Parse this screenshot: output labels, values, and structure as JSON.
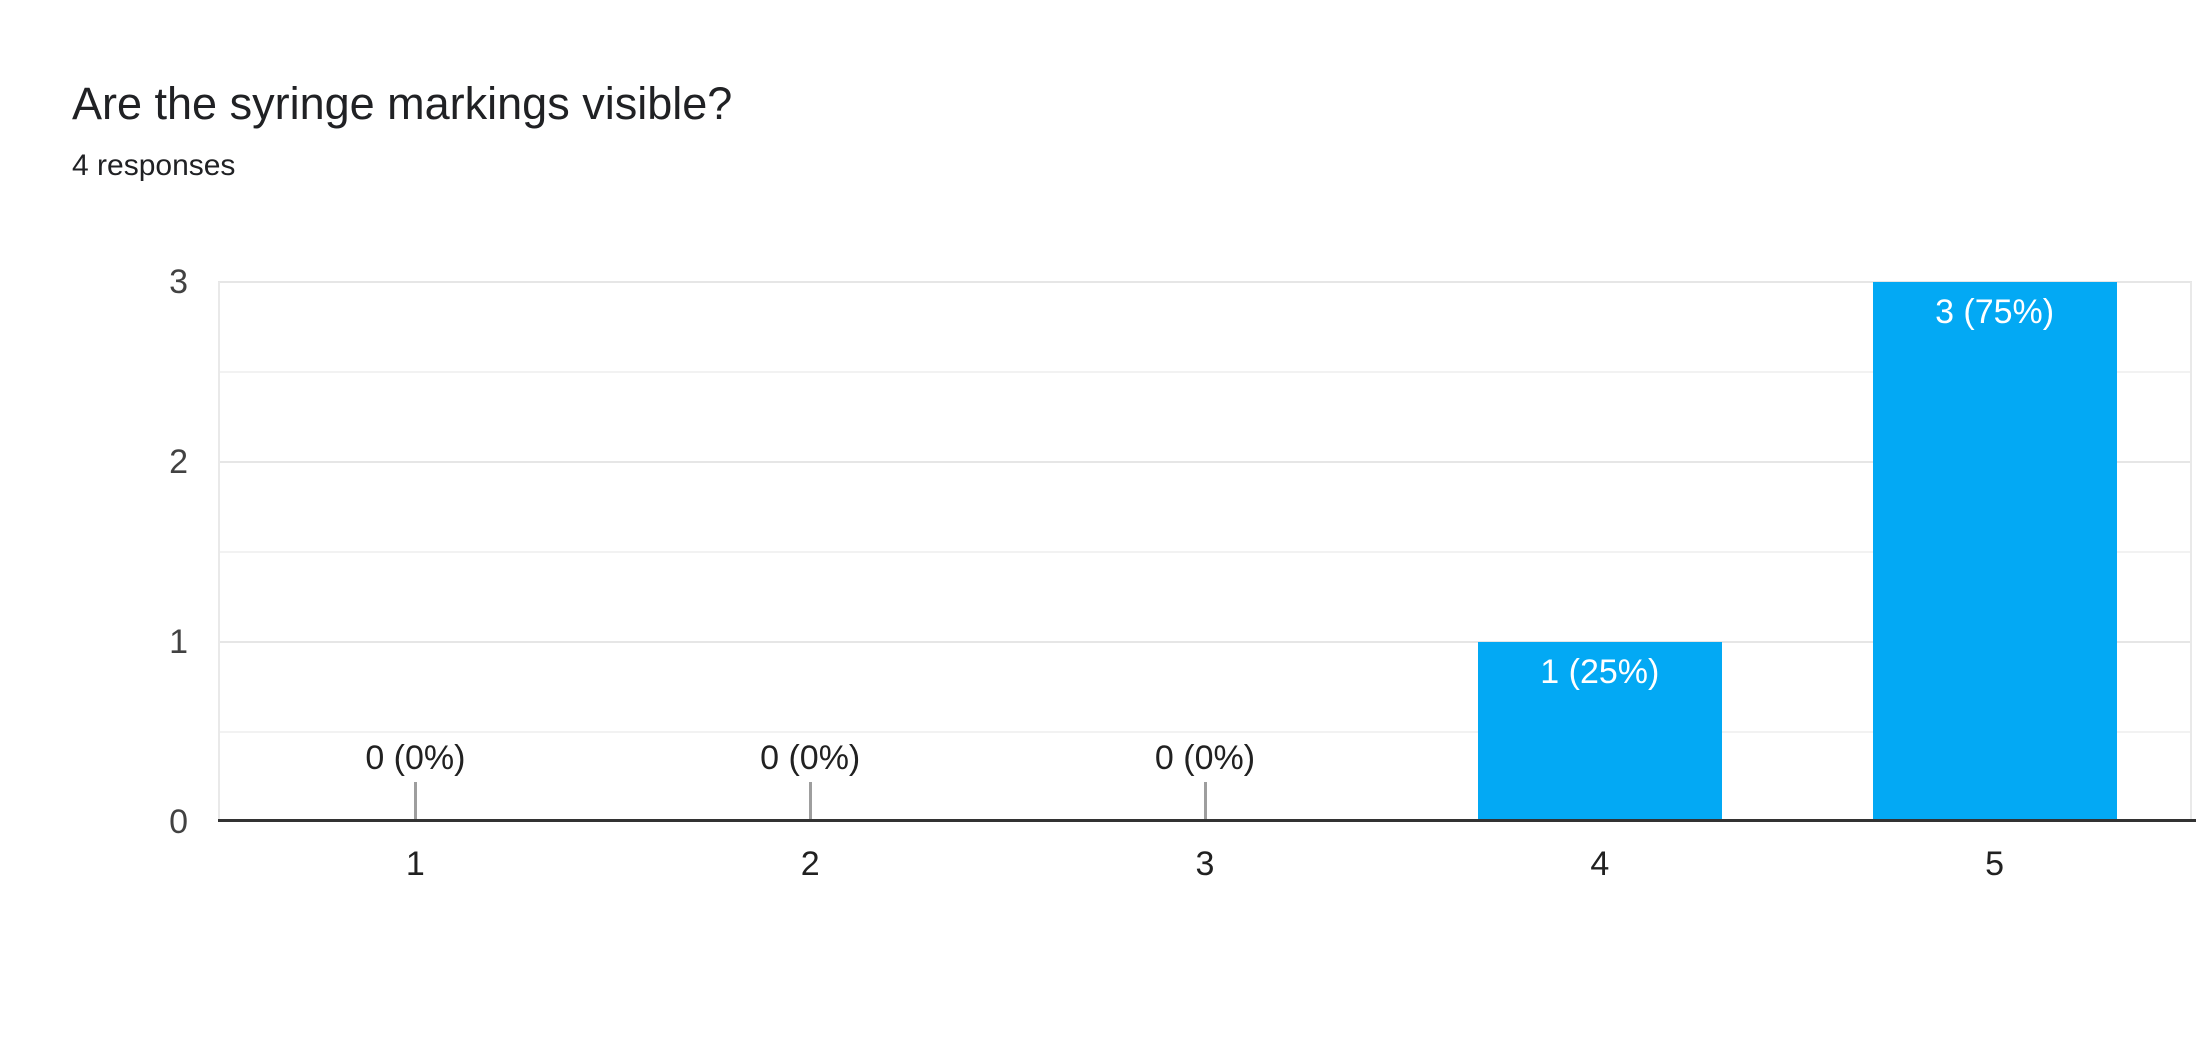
{
  "chart_data": {
    "type": "bar",
    "title": "Are the syringe markings visible?",
    "subtitle": "4 responses",
    "total_responses": 4,
    "categories": [
      "1",
      "2",
      "3",
      "4",
      "5"
    ],
    "values": [
      0,
      0,
      0,
      1,
      3
    ],
    "bar_labels": [
      "0 (0%)",
      "0 (0%)",
      "0 (0%)",
      "1 (25%)",
      "3 (75%)"
    ],
    "percentages": [
      0,
      0,
      0,
      25,
      75
    ],
    "xlabel": "",
    "ylabel": "",
    "ylim": [
      0,
      3
    ],
    "yticks": [
      "0",
      "1",
      "2",
      "3"
    ],
    "grid": {
      "horizontal": true,
      "minor_step": 0.5,
      "vertical": false
    },
    "legend": "none",
    "colors": {
      "bar": "#03a9f4",
      "bar_label_text": "#ffffff",
      "outside_label_text": "#212121",
      "y_axis_text": "#424242",
      "category_text": "#212121",
      "gridline_major": "#e6e6e6",
      "gridline_minor": "#f2f2f2",
      "plot_border": "#e9e9e9",
      "baseline": "#333333",
      "zero_tick": "#9e9e9e",
      "title_text": "#202124",
      "background": "#ffffff"
    }
  }
}
